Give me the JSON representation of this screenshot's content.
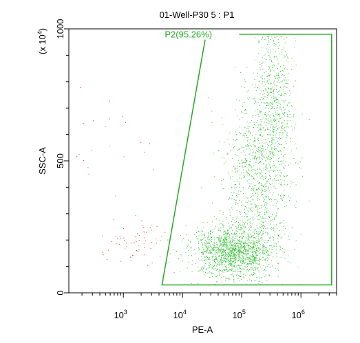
{
  "chart_data": {
    "type": "scatter",
    "title": "01-Well-P30 5 : P1",
    "xlabel": "PE-A",
    "ylabel": "SSC-A",
    "y_multiplier_label": "(x 10^4)",
    "x_scale": "log",
    "xlim": [
      120,
      4000000
    ],
    "ylim": [
      0,
      1000
    ],
    "x_ticks": [
      {
        "label_base": "10",
        "label_exp": "3",
        "value": 1000
      },
      {
        "label_base": "10",
        "label_exp": "4",
        "value": 10000
      },
      {
        "label_base": "10",
        "label_exp": "5",
        "value": 100000
      },
      {
        "label_base": "10",
        "label_exp": "6",
        "value": 1000000
      }
    ],
    "y_ticks": [
      {
        "label": "0",
        "value": 0
      },
      {
        "label": "500",
        "value": 500
      },
      {
        "label": "1000",
        "value": 1000
      }
    ],
    "gate": {
      "name": "P2(95.26%)",
      "color": "#22aa22",
      "vertices": [
        [
          4500,
          30
        ],
        [
          25000,
          980
        ],
        [
          3300000,
          980
        ],
        [
          3300000,
          30
        ]
      ]
    },
    "series": [
      {
        "color": "#22bb22",
        "count": 3000,
        "clusters": [
          {
            "x_log_mean": 4.85,
            "x_log_sd": 0.33,
            "y_mean": 160,
            "y_sd": 50,
            "weight": 0.5
          },
          {
            "x_log_mean": 5.25,
            "x_log_sd": 0.28,
            "y_mean": 420,
            "y_sd": 170,
            "weight": 0.32
          },
          {
            "x_log_mean": 5.55,
            "x_log_sd": 0.16,
            "y_mean": 720,
            "y_sd": 150,
            "weight": 0.18
          }
        ]
      },
      {
        "color": "#dd2222",
        "count": 90,
        "clusters": [
          {
            "x_log_mean": 3.2,
            "x_log_sd": 0.28,
            "y_mean": 200,
            "y_sd": 45,
            "weight": 0.72
          },
          {
            "x_log_mean": 2.7,
            "x_log_sd": 0.45,
            "y_mean": 520,
            "y_sd": 230,
            "weight": 0.28
          }
        ]
      }
    ]
  }
}
